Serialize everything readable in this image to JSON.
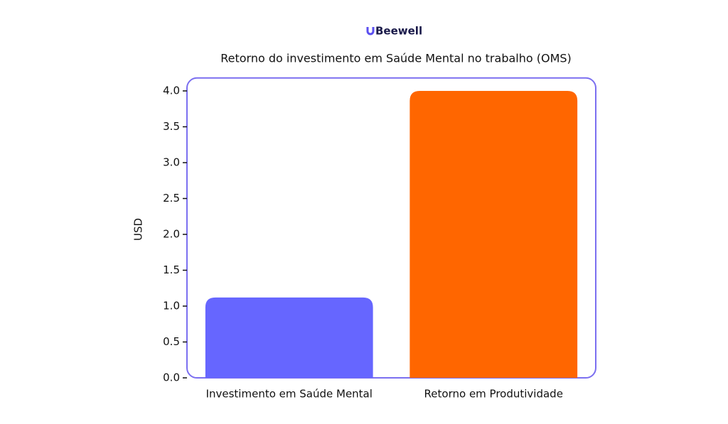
{
  "logo": "Beewell",
  "chart_data": {
    "type": "bar",
    "title": "Retorno do investimento em Saúde Mental no trabalho (OMS)",
    "y_label": "USD",
    "categories": [
      "Investimento em Saúde Mental",
      "Retorno em Produtividade"
    ],
    "series": [
      {
        "name": null,
        "colors": [
          "#6666ff",
          "#ff6600"
        ],
        "values": [
          1.12,
          4.0
        ]
      }
    ],
    "ylim": [
      0,
      4.2
    ],
    "yticks": [
      {
        "value": 0,
        "label": "0.0"
      },
      {
        "value": 0.5,
        "label": "0.5"
      },
      {
        "value": 1,
        "label": "1.0"
      },
      {
        "value": 1.5,
        "label": "1.5"
      },
      {
        "value": 2,
        "label": "2.0"
      },
      {
        "value": 2.5,
        "label": "2.5"
      },
      {
        "value": 3,
        "label": "3.0"
      },
      {
        "value": 3.5,
        "label": "3.5"
      },
      {
        "value": 4,
        "label": "4.0"
      }
    ],
    "grid": false,
    "frame_color": "#7b6ff0"
  }
}
